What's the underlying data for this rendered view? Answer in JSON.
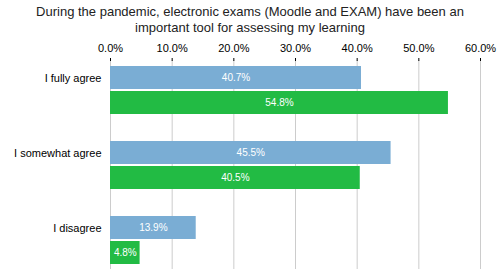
{
  "chart_data": {
    "type": "bar",
    "orientation": "horizontal",
    "title": "During the pandemic, electronic exams (Moodle and EXAM) have been an\nimportant tool for assessing my learning",
    "categories": [
      "I fully agree",
      "I somewhat agree",
      "I disagree"
    ],
    "series": [
      {
        "color": "#7aadd4",
        "values": [
          40.7,
          45.5,
          13.9
        ],
        "value_labels": [
          "40.7%",
          "45.5%",
          "13.9%"
        ]
      },
      {
        "color": "#22bb44",
        "values": [
          54.8,
          40.5,
          4.8
        ],
        "value_labels": [
          "54.8%",
          "40.5%",
          "4.8%"
        ]
      }
    ],
    "xlim": [
      0,
      60
    ],
    "xticks": [
      {
        "value": 0,
        "label": "0.0%"
      },
      {
        "value": 10,
        "label": "10.0%"
      },
      {
        "value": 20,
        "label": "20.0%"
      },
      {
        "value": 30,
        "label": "30.0%"
      },
      {
        "value": 40,
        "label": "40.0%"
      },
      {
        "value": 50,
        "label": "50.0%"
      },
      {
        "value": 60,
        "label": "60.0%"
      }
    ],
    "grid": true,
    "data_labels": true
  }
}
